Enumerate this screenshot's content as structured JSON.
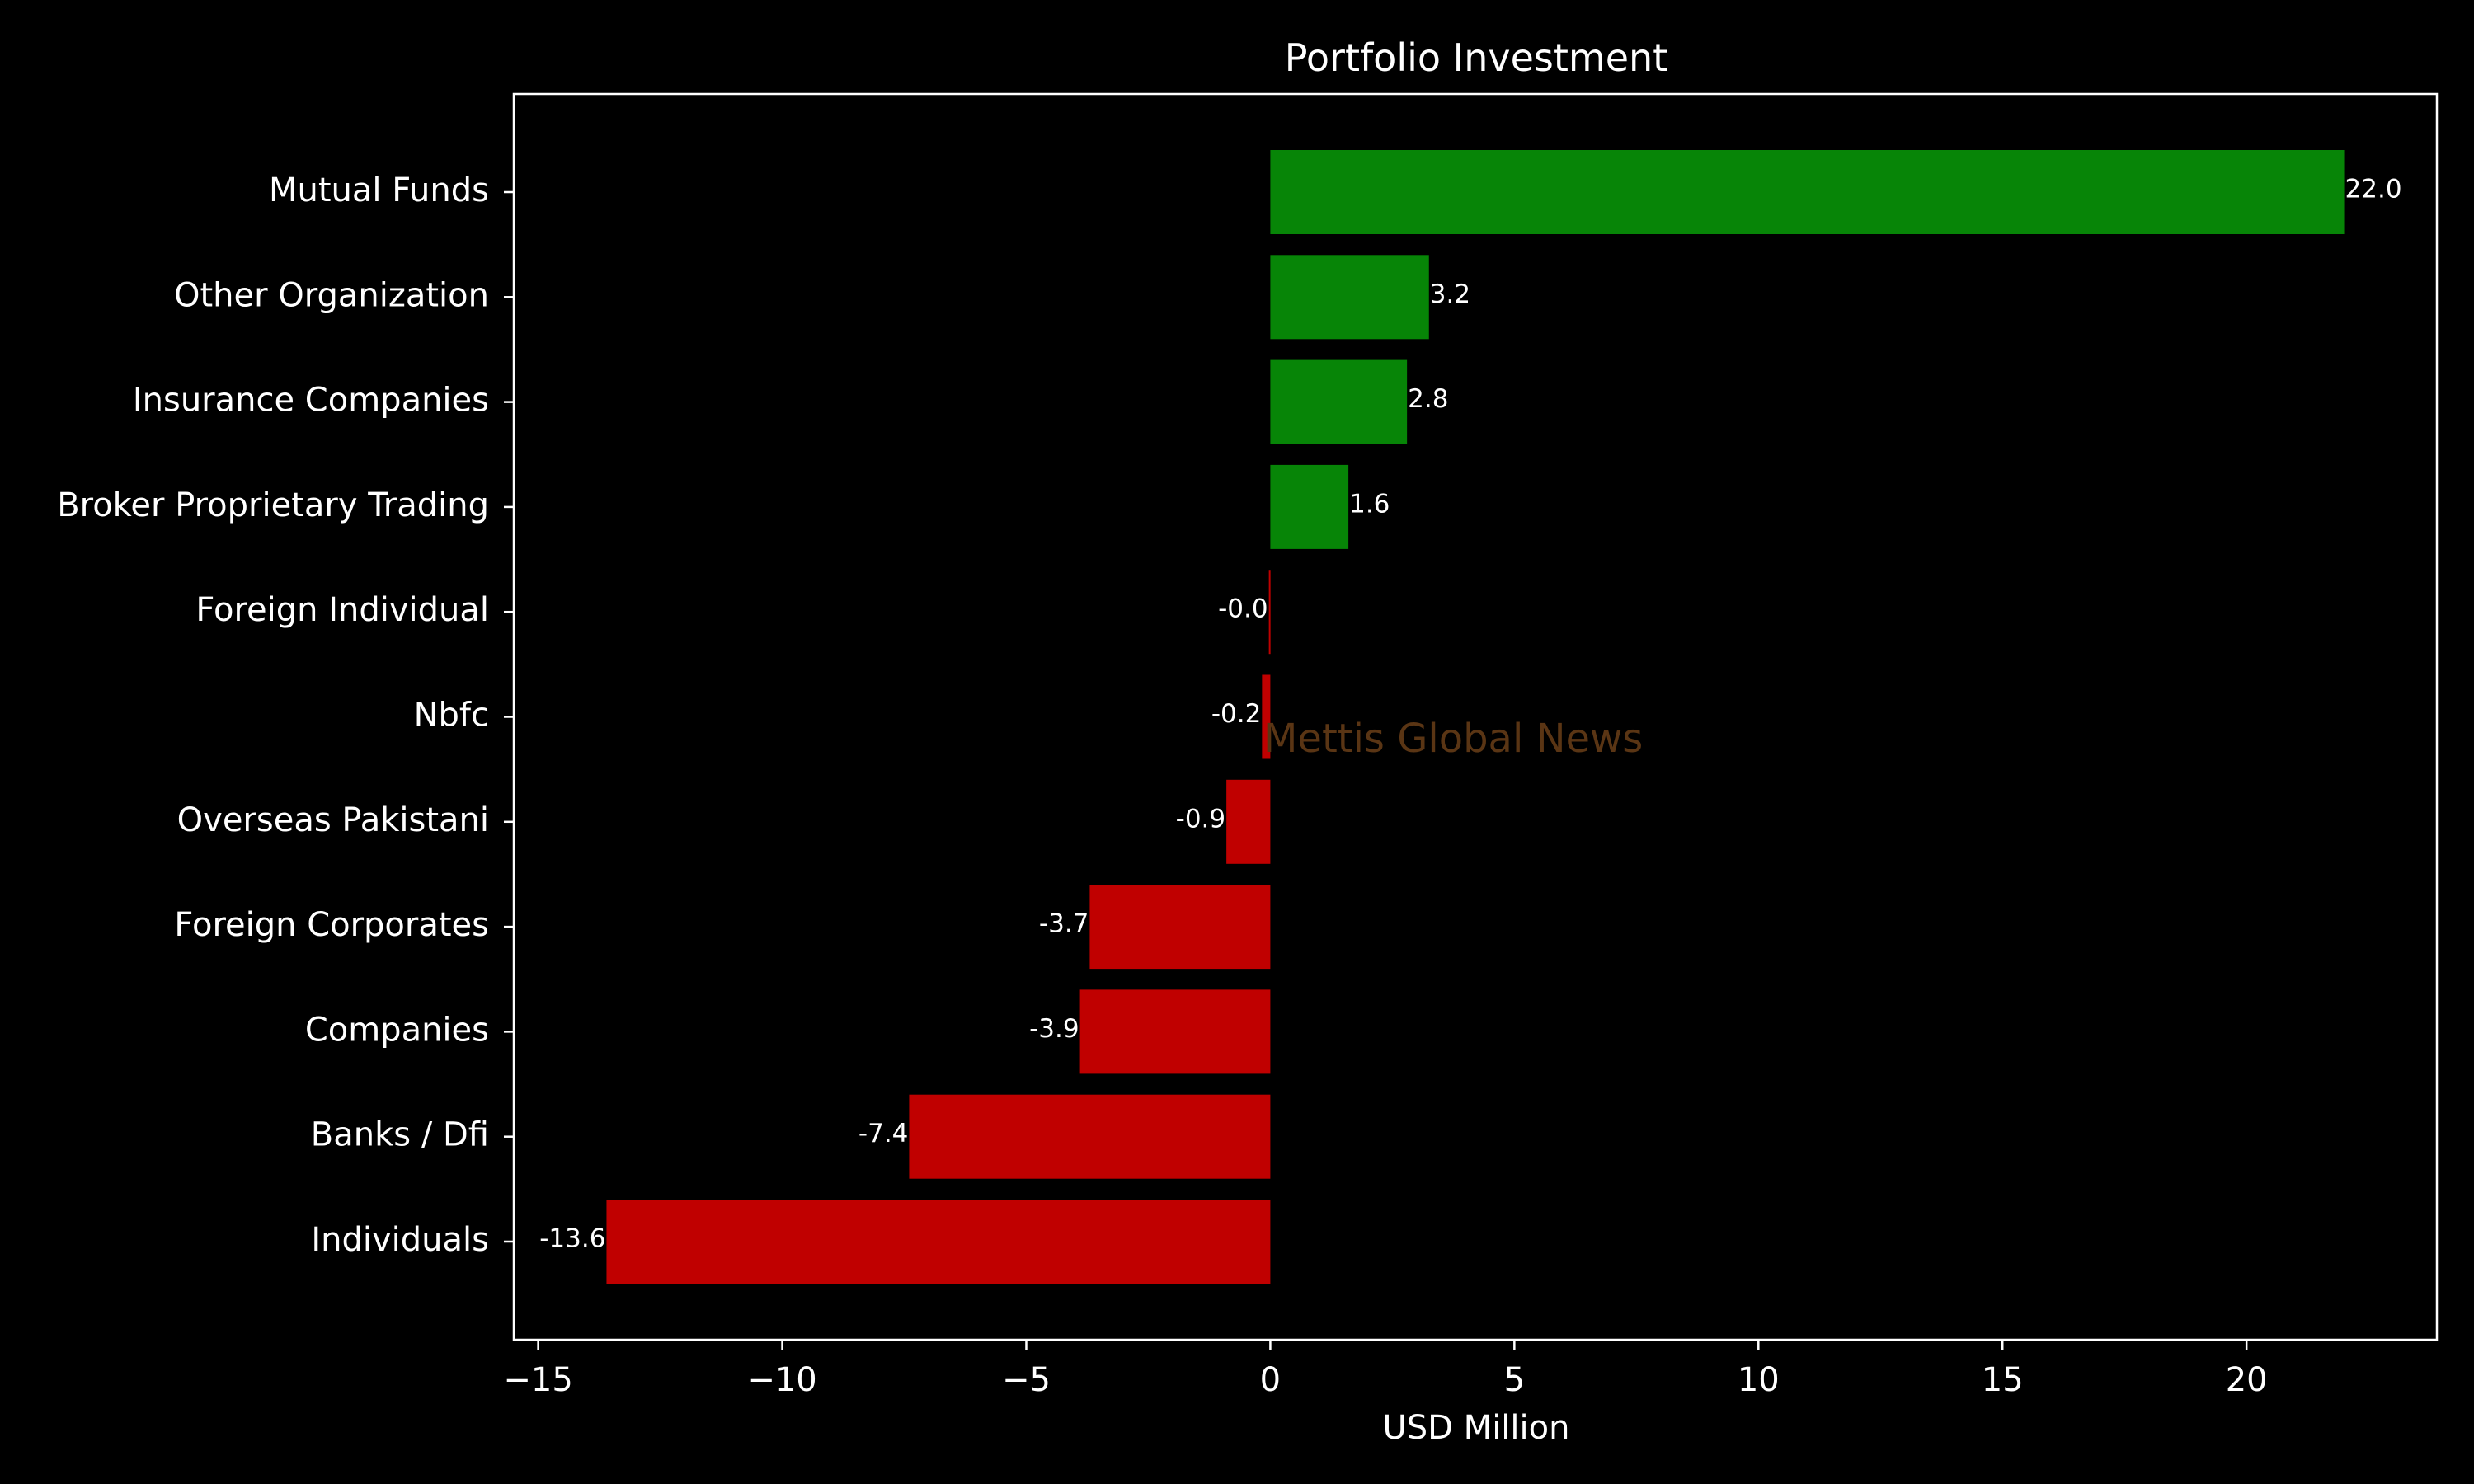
{
  "chart_data": {
    "type": "bar",
    "orientation": "horizontal",
    "title": "Portfolio Investment",
    "xlabel": "USD Million",
    "ylabel": "",
    "xlim": [
      -15.5,
      23.9
    ],
    "xticks": [
      -15,
      -10,
      -5,
      0,
      5,
      10,
      15,
      20
    ],
    "xtick_labels": [
      "−15",
      "−10",
      "−5",
      "0",
      "5",
      "10",
      "15",
      "20"
    ],
    "grid": false,
    "categories": [
      "Mutual Funds",
      "Other Organization",
      "Insurance Companies",
      "Broker Proprietary Trading",
      "Foreign Individual",
      "Nbfc",
      "Overseas Pakistani",
      "Foreign Corporates ",
      "Companies",
      "Banks / Dfi",
      "Individuals"
    ],
    "values": [
      22.0,
      3.25,
      2.8,
      1.6,
      -0.03,
      -0.17,
      -0.9,
      -3.7,
      -3.9,
      -7.4,
      -13.6
    ],
    "value_labels": [
      "22.0",
      "3.2",
      "2.8",
      "1.6",
      "-0.0",
      "-0.2",
      "-0.9",
      "-3.7",
      "-3.9",
      "-7.4",
      "-13.6"
    ],
    "colors": {
      "positive": "#078507",
      "negative": "#c00000",
      "background": "#000000",
      "axes": "#ffffff"
    },
    "watermark": "Mettis Global News"
  }
}
